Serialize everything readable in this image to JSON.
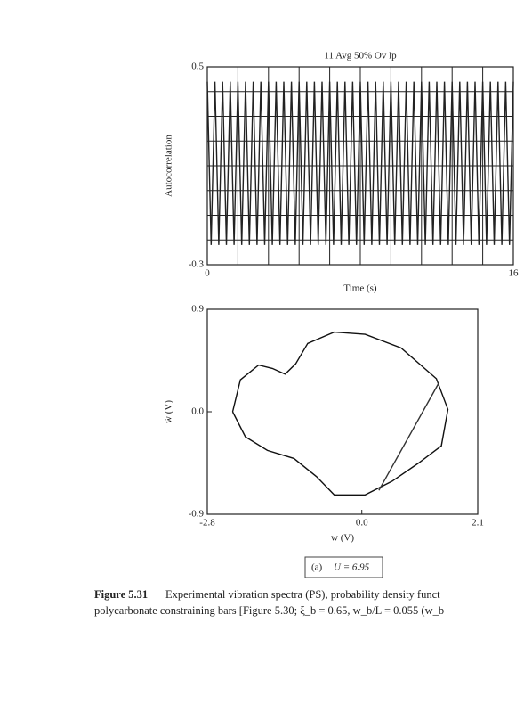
{
  "chart_data": [
    {
      "type": "line",
      "title": "11 Avg 50% Ov lp",
      "xlabel": "Time (s)",
      "ylabel": "Autocorrelation",
      "xlim": [
        0,
        16
      ],
      "ylim": [
        -0.3,
        0.5
      ],
      "xticks": [
        0,
        16
      ],
      "yticks": [
        -0.3,
        0.5
      ],
      "xgrid": [
        1.6,
        3.2,
        4.8,
        6.4,
        8,
        9.6,
        11.2,
        12.8,
        14.4
      ],
      "ygrid": [
        -0.2,
        -0.1,
        0,
        0.1,
        0.2,
        0.3,
        0.4
      ],
      "series": [
        {
          "color": "#222222",
          "x": [
            0,
            0.2,
            0.4,
            0.6,
            0.8,
            1,
            1.2,
            1.4,
            1.6,
            1.8,
            2,
            2.2,
            2.4,
            2.6,
            2.8,
            3,
            3.2,
            3.4,
            3.6,
            3.8,
            4,
            4.2,
            4.4,
            4.6,
            4.8,
            5,
            5.2,
            5.4,
            5.6,
            5.8,
            6,
            6.2,
            6.4,
            6.6,
            6.8,
            7,
            7.2,
            7.4,
            7.6,
            7.8,
            8,
            8.2,
            8.4,
            8.6,
            8.8,
            9,
            9.2,
            9.4,
            9.6,
            9.8,
            10,
            10.2,
            10.4,
            10.6,
            10.8,
            11,
            11.2,
            11.4,
            11.6,
            11.8,
            12,
            12.2,
            12.4,
            12.6,
            12.8,
            13,
            13.2,
            13.4,
            13.6,
            13.8,
            14,
            14.2,
            14.4,
            14.6,
            14.8,
            15,
            15.2,
            15.4,
            15.6,
            15.8,
            16
          ],
          "values": [
            0.44,
            -0.22,
            0.44,
            -0.22,
            0.44,
            -0.22,
            0.44,
            -0.22,
            0.44,
            -0.22,
            0.44,
            -0.22,
            0.44,
            -0.22,
            0.44,
            -0.22,
            0.44,
            -0.22,
            0.44,
            -0.22,
            0.44,
            -0.22,
            0.44,
            -0.22,
            0.44,
            -0.22,
            0.44,
            -0.22,
            0.44,
            -0.22,
            0.44,
            -0.22,
            0.44,
            -0.22,
            0.44,
            -0.22,
            0.44,
            -0.22,
            0.44,
            -0.22,
            0.44,
            -0.22,
            0.44,
            -0.22,
            0.44,
            -0.22,
            0.44,
            -0.22,
            0.44,
            -0.22,
            0.44,
            -0.22,
            0.44,
            -0.22,
            0.44,
            -0.22,
            0.44,
            -0.22,
            0.44,
            -0.22,
            0.44,
            -0.22,
            0.44,
            -0.22,
            0.44,
            -0.22,
            0.44,
            -0.22,
            0.44,
            -0.22,
            0.44,
            -0.22,
            0.44,
            -0.22,
            0.44,
            -0.22,
            0.44,
            -0.22,
            0.44,
            -0.22,
            0.44
          ]
        }
      ]
    },
    {
      "type": "line",
      "xlabel": "w (V)",
      "ylabel": "ẇ (V)",
      "xlim": [
        -2.8,
        2.1
      ],
      "ylim": [
        -0.9,
        0.9
      ],
      "xticks": [
        -2.8,
        {
          "value": 0,
          "label": "0.0"
        },
        2.1
      ],
      "yticks": [
        -0.9,
        {
          "value": 0,
          "label": "0.0"
        },
        0.9
      ],
      "series": [
        {
          "color": "#111111",
          "x": [
            -2.34,
            -2.2,
            -1.87,
            -1.62,
            -1.39,
            -1.2,
            -0.98,
            -0.5,
            0.06,
            0.71,
            1.35,
            1.56,
            1.44,
            1.03,
            0.55,
            0.06,
            -0.5,
            -0.82,
            -1.23,
            -1.71,
            -2.11,
            -2.34
          ],
          "values": [
            0,
            0.28,
            0.41,
            0.38,
            0.33,
            0.42,
            0.6,
            0.7,
            0.68,
            0.56,
            0.29,
            0.02,
            -0.3,
            -0.45,
            -0.61,
            -0.73,
            -0.73,
            -0.57,
            -0.41,
            -0.34,
            -0.22,
            0
          ]
        },
        {
          "color": "#333333",
          "x": [
            0.31,
            1.39
          ],
          "values": [
            -0.69,
            0.25
          ]
        }
      ]
    }
  ],
  "label": {
    "part": "(a)",
    "text": "U = 6.95"
  },
  "caption": {
    "label": "Figure 5.31",
    "line1": "Experimental vibration spectra (PS), probability density funct",
    "line2": "polycarbonate constraining bars [Figure 5.30; ξ_b = 0.65, w_b/L = 0.055 (w_b"
  }
}
